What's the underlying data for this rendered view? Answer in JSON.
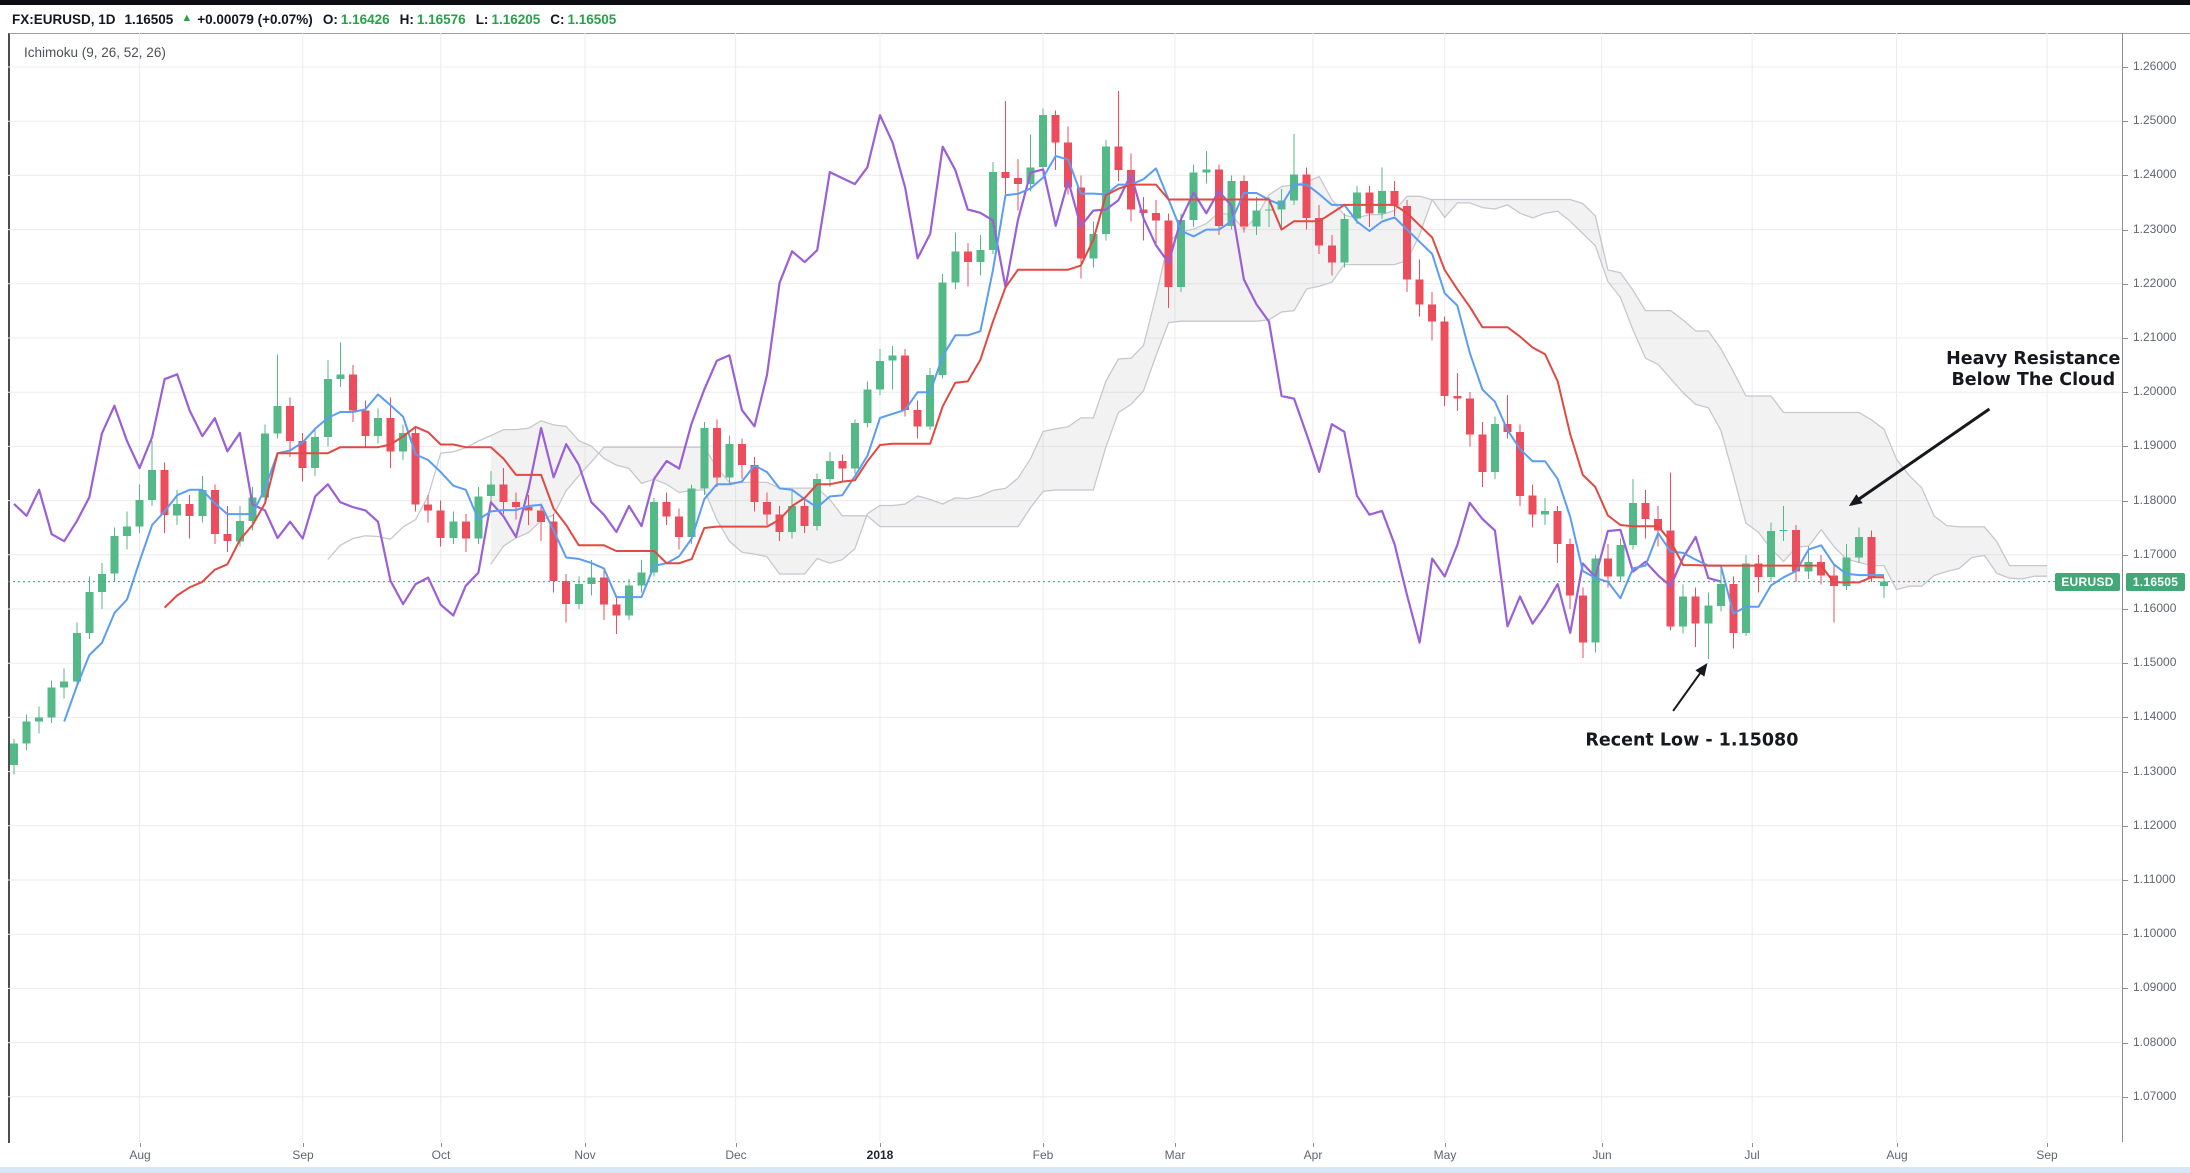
{
  "ohlc_bar": {
    "symbol": "FX:EURUSD, 1D",
    "last_price": "1.16505",
    "up_icon": "▲",
    "change_text": "+0.00079 (+0.07%)",
    "fields": [
      {
        "label": "O:",
        "value": "1.16426"
      },
      {
        "label": "H:",
        "value": "1.16576"
      },
      {
        "label": "L:",
        "value": "1.16205"
      },
      {
        "label": "C:",
        "value": "1.16505"
      }
    ]
  },
  "chart": {
    "indicator_label": "Ichimoku (9, 26, 52, 26)",
    "price_badge": {
      "symbol": "EURUSD",
      "value": "1.16505"
    },
    "annotations": [
      {
        "id": "heavy-resistance",
        "text_lines": [
          "Heavy Resistance",
          "Below The Cloud"
        ],
        "idx": 160.9,
        "price": 1.2052,
        "arrow": {
          "from_idx": 157.4,
          "from_price": 1.1969,
          "to_idx": 146.4,
          "to_price": 1.1793
        },
        "stroke_width": 3
      },
      {
        "id": "recent-low",
        "text_lines": [
          "Recent Low - 1.15080"
        ],
        "idx": 133.7,
        "price": 1.1348,
        "arrow": {
          "from_idx": 132.2,
          "from_price": 1.1412,
          "to_idx": 134.8,
          "to_price": 1.1496
        },
        "stroke_width": 2
      }
    ]
  },
  "chart_data": {
    "type": "candlestick",
    "symbol": "EURUSD",
    "timeframe": "1D",
    "title": "FX:EURUSD 1D with Ichimoku (9, 26, 52, 26)",
    "y_axis": {
      "min": 1.07,
      "max": 1.26,
      "tick_step": 0.01,
      "decimals": 5
    },
    "x_labels": [
      {
        "label": "Aug",
        "idx": 10
      },
      {
        "label": "Sep",
        "idx": 23
      },
      {
        "label": "Oct",
        "idx": 34
      },
      {
        "label": "Nov",
        "idx": 45.5
      },
      {
        "label": "Dec",
        "idx": 57.5
      },
      {
        "label": "2018",
        "idx": 69
      },
      {
        "label": "Feb",
        "idx": 82
      },
      {
        "label": "Mar",
        "idx": 92.5
      },
      {
        "label": "Apr",
        "idx": 103.5
      },
      {
        "label": "May",
        "idx": 114
      },
      {
        "label": "Jun",
        "idx": 126.5
      },
      {
        "label": "Jul",
        "idx": 138.5
      },
      {
        "label": "Aug",
        "idx": 150
      },
      {
        "label": "Sep",
        "idx": 162
      }
    ],
    "current_price": 1.16505,
    "ichimoku": {
      "display_params": [
        9,
        26,
        52,
        26
      ],
      "candle_params": {
        "tenkan": 5,
        "kijun": 13,
        "senkou_b": 26,
        "displacement": 13
      }
    },
    "candles": [
      [
        1.1312,
        1.136,
        1.1295,
        1.1352
      ],
      [
        1.1352,
        1.1405,
        1.134,
        1.1392
      ],
      [
        1.1392,
        1.142,
        1.137,
        1.14
      ],
      [
        1.14,
        1.1468,
        1.139,
        1.1455
      ],
      [
        1.1455,
        1.149,
        1.1435,
        1.1466
      ],
      [
        1.1466,
        1.1575,
        1.1455,
        1.1556
      ],
      [
        1.1556,
        1.166,
        1.1545,
        1.1631
      ],
      [
        1.1631,
        1.1685,
        1.16,
        1.1665
      ],
      [
        1.1665,
        1.175,
        1.165,
        1.1735
      ],
      [
        1.1735,
        1.178,
        1.171,
        1.1752
      ],
      [
        1.1752,
        1.183,
        1.174,
        1.1801
      ],
      [
        1.1801,
        1.191,
        1.179,
        1.1856
      ],
      [
        1.1856,
        1.187,
        1.174,
        1.1773
      ],
      [
        1.1773,
        1.182,
        1.1755,
        1.1794
      ],
      [
        1.1794,
        1.181,
        1.173,
        1.1772
      ],
      [
        1.1772,
        1.1845,
        1.176,
        1.182
      ],
      [
        1.182,
        1.183,
        1.172,
        1.1738
      ],
      [
        1.1738,
        1.179,
        1.1705,
        1.1725
      ],
      [
        1.1725,
        1.179,
        1.1715,
        1.1762
      ],
      [
        1.1762,
        1.1825,
        1.1745,
        1.1806
      ],
      [
        1.1806,
        1.194,
        1.1795,
        1.1924
      ],
      [
        1.1924,
        1.207,
        1.1915,
        1.1975
      ],
      [
        1.1975,
        1.199,
        1.188,
        1.191
      ],
      [
        1.191,
        1.1925,
        1.1835,
        1.186
      ],
      [
        1.186,
        1.193,
        1.1845,
        1.1917
      ],
      [
        1.1917,
        1.2059,
        1.19,
        1.2024
      ],
      [
        1.2024,
        1.2092,
        1.201,
        1.2033
      ],
      [
        1.2033,
        1.205,
        1.1945,
        1.1966
      ],
      [
        1.1966,
        1.1985,
        1.19,
        1.1919
      ],
      [
        1.1919,
        1.197,
        1.1905,
        1.1952
      ],
      [
        1.1952,
        1.199,
        1.186,
        1.1891
      ],
      [
        1.1891,
        1.194,
        1.1875,
        1.1925
      ],
      [
        1.1925,
        1.1935,
        1.178,
        1.1793
      ],
      [
        1.1793,
        1.181,
        1.176,
        1.1782
      ],
      [
        1.1782,
        1.18,
        1.1715,
        1.1731
      ],
      [
        1.1731,
        1.178,
        1.172,
        1.1761
      ],
      [
        1.1761,
        1.1775,
        1.1705,
        1.173
      ],
      [
        1.173,
        1.1825,
        1.172,
        1.1808
      ],
      [
        1.1808,
        1.1855,
        1.1795,
        1.183
      ],
      [
        1.183,
        1.186,
        1.1775,
        1.1797
      ],
      [
        1.1797,
        1.1815,
        1.1765,
        1.1788
      ],
      [
        1.1788,
        1.181,
        1.1755,
        1.1782
      ],
      [
        1.1782,
        1.1795,
        1.1725,
        1.1761
      ],
      [
        1.1761,
        1.1775,
        1.163,
        1.1652
      ],
      [
        1.1652,
        1.1665,
        1.1575,
        1.1609
      ],
      [
        1.1609,
        1.166,
        1.16,
        1.1646
      ],
      [
        1.1646,
        1.169,
        1.1625,
        1.1658
      ],
      [
        1.1658,
        1.167,
        1.158,
        1.1608
      ],
      [
        1.1608,
        1.1625,
        1.1554,
        1.1588
      ],
      [
        1.1588,
        1.1655,
        1.158,
        1.1643
      ],
      [
        1.1643,
        1.169,
        1.163,
        1.1667
      ],
      [
        1.1667,
        1.1805,
        1.166,
        1.1797
      ],
      [
        1.1797,
        1.1815,
        1.1755,
        1.1771
      ],
      [
        1.1771,
        1.1785,
        1.171,
        1.1733
      ],
      [
        1.1733,
        1.183,
        1.172,
        1.1822
      ],
      [
        1.1822,
        1.1945,
        1.181,
        1.1934
      ],
      [
        1.1934,
        1.195,
        1.1825,
        1.1843
      ],
      [
        1.1843,
        1.192,
        1.183,
        1.1904
      ],
      [
        1.1904,
        1.1915,
        1.184,
        1.1866
      ],
      [
        1.1866,
        1.188,
        1.178,
        1.1797
      ],
      [
        1.1797,
        1.1815,
        1.1755,
        1.1774
      ],
      [
        1.1774,
        1.179,
        1.1725,
        1.1742
      ],
      [
        1.1742,
        1.182,
        1.173,
        1.179
      ],
      [
        1.179,
        1.1805,
        1.174,
        1.1753
      ],
      [
        1.1753,
        1.185,
        1.1745,
        1.184
      ],
      [
        1.184,
        1.189,
        1.1825,
        1.1873
      ],
      [
        1.1873,
        1.1885,
        1.1835,
        1.1859
      ],
      [
        1.1859,
        1.195,
        1.185,
        1.1943
      ],
      [
        1.1943,
        1.202,
        1.1935,
        1.2005
      ],
      [
        1.2005,
        1.208,
        1.1995,
        1.2058
      ],
      [
        1.2058,
        1.2085,
        1.2005,
        1.2068
      ],
      [
        1.2068,
        1.208,
        1.1955,
        1.1967
      ],
      [
        1.1967,
        1.1985,
        1.1915,
        1.1937
      ],
      [
        1.1937,
        1.2045,
        1.193,
        1.2032
      ],
      [
        1.2032,
        1.2218,
        1.2025,
        1.2202
      ],
      [
        1.2202,
        1.2295,
        1.219,
        1.226
      ],
      [
        1.226,
        1.2275,
        1.2195,
        1.224
      ],
      [
        1.224,
        1.229,
        1.2215,
        1.2262
      ],
      [
        1.2262,
        1.2425,
        1.2255,
        1.2406
      ],
      [
        1.2406,
        1.2537,
        1.2365,
        1.2395
      ],
      [
        1.2395,
        1.243,
        1.2335,
        1.2384
      ],
      [
        1.2384,
        1.2475,
        1.237,
        1.2415
      ],
      [
        1.2415,
        1.2523,
        1.24,
        1.2511
      ],
      [
        1.2511,
        1.252,
        1.241,
        1.2461
      ],
      [
        1.2461,
        1.249,
        1.2365,
        1.2378
      ],
      [
        1.2378,
        1.24,
        1.221,
        1.2247
      ],
      [
        1.2247,
        1.2315,
        1.223,
        1.2292
      ],
      [
        1.2292,
        1.2465,
        1.228,
        1.2453
      ],
      [
        1.2453,
        1.2556,
        1.239,
        1.241
      ],
      [
        1.241,
        1.244,
        1.2315,
        1.2337
      ],
      [
        1.2337,
        1.236,
        1.228,
        1.2331
      ],
      [
        1.2331,
        1.2355,
        1.227,
        1.2317
      ],
      [
        1.2317,
        1.233,
        1.2155,
        1.2194
      ],
      [
        1.2194,
        1.233,
        1.2185,
        1.2318
      ],
      [
        1.2318,
        1.242,
        1.2305,
        1.2405
      ],
      [
        1.2405,
        1.2445,
        1.2385,
        1.2411
      ],
      [
        1.2411,
        1.242,
        1.229,
        1.2307
      ],
      [
        1.2307,
        1.24,
        1.23,
        1.239
      ],
      [
        1.239,
        1.24,
        1.2295,
        1.2306
      ],
      [
        1.2306,
        1.236,
        1.229,
        1.2335
      ],
      [
        1.2335,
        1.236,
        1.2305,
        1.2337
      ],
      [
        1.2337,
        1.2375,
        1.23,
        1.2354
      ],
      [
        1.2354,
        1.2476,
        1.2345,
        1.2402
      ],
      [
        1.2402,
        1.2415,
        1.23,
        1.2321
      ],
      [
        1.2321,
        1.2345,
        1.2255,
        1.2271
      ],
      [
        1.2271,
        1.229,
        1.2215,
        1.2239
      ],
      [
        1.2239,
        1.233,
        1.223,
        1.232
      ],
      [
        1.232,
        1.238,
        1.231,
        1.2368
      ],
      [
        1.2368,
        1.238,
        1.2305,
        1.233
      ],
      [
        1.233,
        1.2415,
        1.232,
        1.2371
      ],
      [
        1.2371,
        1.239,
        1.2325,
        1.2344
      ],
      [
        1.2344,
        1.2355,
        1.2185,
        1.2208
      ],
      [
        1.2208,
        1.2245,
        1.214,
        1.2162
      ],
      [
        1.2162,
        1.2185,
        1.2095,
        1.213
      ],
      [
        1.213,
        1.214,
        1.1975,
        1.1993
      ],
      [
        1.1993,
        1.2035,
        1.1965,
        1.1988
      ],
      [
        1.1988,
        1.2,
        1.19,
        1.1922
      ],
      [
        1.1922,
        1.1945,
        1.1825,
        1.1853
      ],
      [
        1.1853,
        1.1955,
        1.184,
        1.1941
      ],
      [
        1.1941,
        1.1995,
        1.1915,
        1.1927
      ],
      [
        1.1927,
        1.194,
        1.179,
        1.1809
      ],
      [
        1.1809,
        1.183,
        1.175,
        1.1774
      ],
      [
        1.1774,
        1.1805,
        1.1755,
        1.1781
      ],
      [
        1.1781,
        1.179,
        1.1685,
        1.172
      ],
      [
        1.172,
        1.173,
        1.16,
        1.1625
      ],
      [
        1.1625,
        1.164,
        1.151,
        1.1538
      ],
      [
        1.1538,
        1.17,
        1.152,
        1.1693
      ],
      [
        1.1693,
        1.172,
        1.164,
        1.166
      ],
      [
        1.166,
        1.173,
        1.165,
        1.1718
      ],
      [
        1.1718,
        1.184,
        1.171,
        1.1796
      ],
      [
        1.1796,
        1.182,
        1.173,
        1.1766
      ],
      [
        1.1766,
        1.179,
        1.1715,
        1.1745
      ],
      [
        1.1745,
        1.1852,
        1.156,
        1.1568
      ],
      [
        1.1568,
        1.1645,
        1.1555,
        1.1623
      ],
      [
        1.1623,
        1.164,
        1.153,
        1.1573
      ],
      [
        1.1573,
        1.163,
        1.1508,
        1.1606
      ],
      [
        1.1606,
        1.1675,
        1.1595,
        1.1646
      ],
      [
        1.1646,
        1.166,
        1.1527,
        1.1556
      ],
      [
        1.1556,
        1.17,
        1.155,
        1.1684
      ],
      [
        1.1684,
        1.17,
        1.163,
        1.1659
      ],
      [
        1.1659,
        1.176,
        1.165,
        1.1744
      ],
      [
        1.1744,
        1.179,
        1.1725,
        1.1746
      ],
      [
        1.1746,
        1.1755,
        1.165,
        1.1669
      ],
      [
        1.1669,
        1.1715,
        1.1655,
        1.1687
      ],
      [
        1.1687,
        1.17,
        1.1645,
        1.1662
      ],
      [
        1.1662,
        1.168,
        1.1575,
        1.1642
      ],
      [
        1.1642,
        1.172,
        1.1635,
        1.1695
      ],
      [
        1.1695,
        1.175,
        1.1685,
        1.1733
      ],
      [
        1.1733,
        1.1745,
        1.165,
        1.1657
      ],
      [
        1.16426,
        1.16576,
        1.16205,
        1.16505
      ]
    ]
  },
  "colors": {
    "up": "#53b987",
    "down": "#eb4d5c",
    "tenkan": "#5b9df2",
    "kijun": "#e04a42",
    "chikou": "#9b5fd6",
    "cloud_fill": "rgba(128,131,142,0.10)",
    "cloud_border": "#c6c8ce",
    "price_line": "#3aa383",
    "badge_bg": "#43a876",
    "ohlc_green": "#26a248",
    "grid": "#ececef",
    "axis_text": "#62656f",
    "annotation": "#16181d"
  }
}
